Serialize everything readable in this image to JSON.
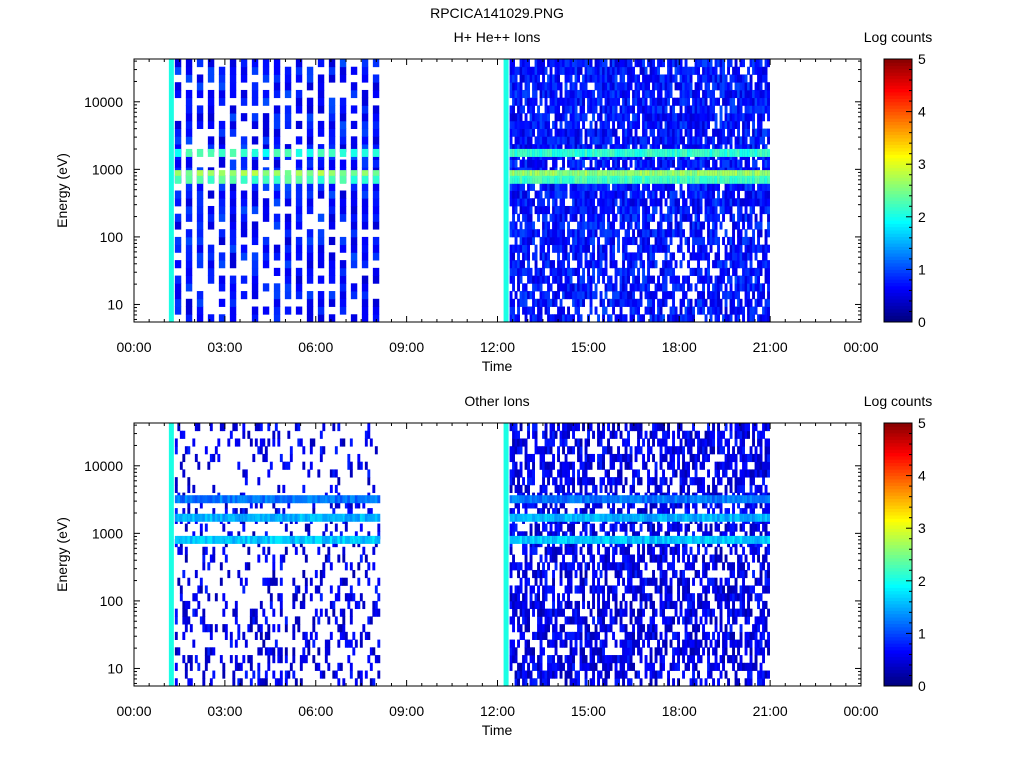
{
  "figure_title": "RPCICA141029.PNG",
  "chart_data": [
    {
      "type": "heatmap",
      "title": "H+ He++ Ions",
      "xlabel": "Time",
      "ylabel": "Energy (eV)",
      "colorbar_label": "Log counts",
      "y_scale": "log",
      "ylim": [
        5.5,
        43000
      ],
      "xlim_hours": [
        0,
        24
      ],
      "x_tick_labels": [
        "00:00",
        "03:00",
        "06:00",
        "09:00",
        "12:00",
        "15:00",
        "18:00",
        "21:00",
        "00:00"
      ],
      "y_tick_labels": [
        "10",
        "100",
        "1000",
        "10000"
      ],
      "colorbar_ticks": [
        "0",
        "1",
        "2",
        "3",
        "4",
        "5"
      ],
      "colorbar_range": [
        0,
        5
      ],
      "data_intervals_hours": [
        [
          1.25,
          8.1
        ],
        [
          12.3,
          20.9
        ]
      ],
      "energy_bands_eV": [
        {
          "energy": 1750,
          "log_counts": 2.1
        },
        {
          "energy": 850,
          "log_counts": 2.6
        },
        {
          "energy": 700,
          "log_counts": 2.2
        }
      ],
      "background_log_counts": 0.7,
      "grid": false
    },
    {
      "type": "heatmap",
      "title": "Other Ions",
      "xlabel": "Time",
      "ylabel": "Energy (eV)",
      "colorbar_label": "Log counts",
      "y_scale": "log",
      "ylim": [
        5.5,
        43000
      ],
      "xlim_hours": [
        0,
        24
      ],
      "x_tick_labels": [
        "00:00",
        "03:00",
        "06:00",
        "09:00",
        "12:00",
        "15:00",
        "18:00",
        "21:00",
        "00:00"
      ],
      "y_tick_labels": [
        "10",
        "100",
        "1000",
        "10000"
      ],
      "colorbar_ticks": [
        "0",
        "1",
        "2",
        "3",
        "4",
        "5"
      ],
      "colorbar_range": [
        0,
        5
      ],
      "data_intervals_hours": [
        [
          1.25,
          8.1
        ],
        [
          12.3,
          20.9
        ]
      ],
      "energy_bands_eV": [
        {
          "energy": 3200,
          "log_counts": 1.2
        },
        {
          "energy": 1700,
          "log_counts": 1.5
        },
        {
          "energy": 800,
          "log_counts": 1.6
        }
      ],
      "background_log_counts": 0.5,
      "grid": false
    }
  ]
}
